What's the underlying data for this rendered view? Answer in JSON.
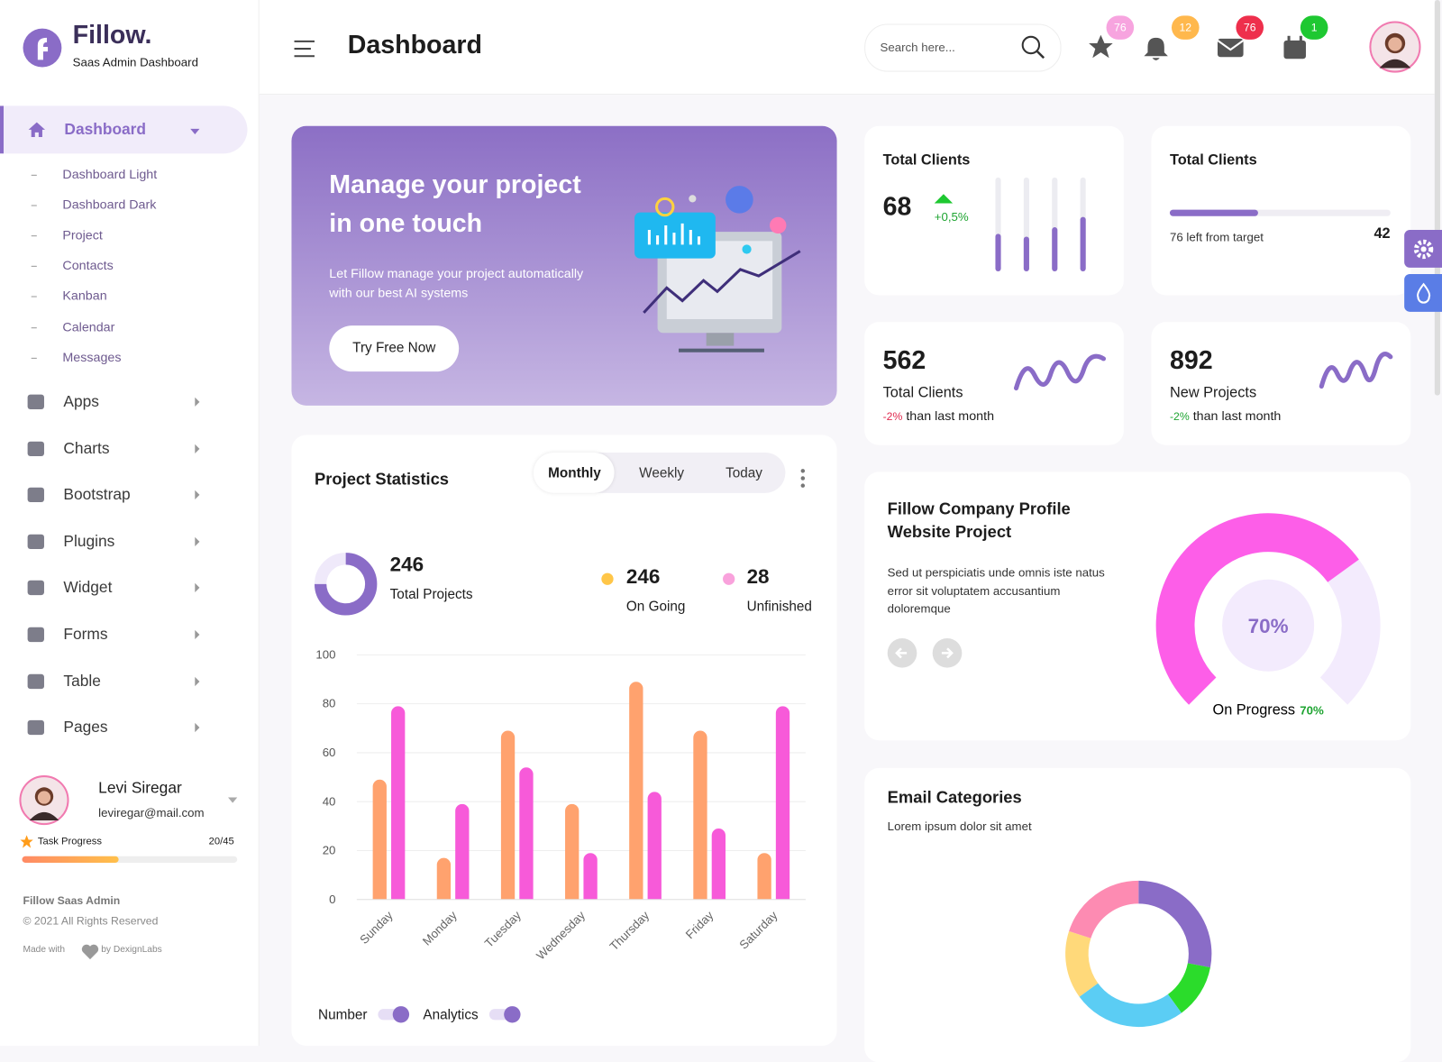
{
  "sidebar": {
    "brand": "Fillow.",
    "tagline": "Saas Admin Dashboard",
    "active": "Dashboard",
    "submenu": [
      "Dashboard Light",
      "Dashboard Dark",
      "Project",
      "Contacts",
      "Kanban",
      "Calendar",
      "Messages"
    ],
    "menu": [
      "Apps",
      "Charts",
      "Bootstrap",
      "Plugins",
      "Widget",
      "Forms",
      "Table",
      "Pages"
    ],
    "user": {
      "name": "Levi Siregar",
      "email": "leviregar@mail.com",
      "task_label": "Task Progress",
      "task_value": "20/45"
    },
    "footer": {
      "title": "Fillow Saas Admin",
      "rights": "© 2021 All Rights Reserved",
      "made_with": "Made with",
      "by": "by DexignLabs"
    }
  },
  "header": {
    "title": "Dashboard",
    "search_placeholder": "Search here...",
    "badges": [
      76,
      12,
      76,
      1
    ]
  },
  "banner": {
    "title": "Manage your project in one touch",
    "text": "Let Fillow manage your project automatically with our best AI systems",
    "button": "Try Free Now"
  },
  "project_statistics": {
    "title": "Project Statistics",
    "tabs": [
      "Monthly",
      "Weekly",
      "Today"
    ],
    "total": 246,
    "total_label": "Total Projects",
    "ongoing": 246,
    "ongoing_label": "On Going",
    "unfinished": 28,
    "unfinished_label": "Unfinished",
    "toggles": [
      "Number",
      "Analytics"
    ]
  },
  "cards": {
    "clients": {
      "title": "Total Clients",
      "value": 68,
      "change": "+0,5%"
    },
    "target": {
      "title": "Total Clients",
      "note": "76 left from target",
      "value": 42
    },
    "stats": [
      {
        "value": 562,
        "label": "Total Clients",
        "change": "-2%",
        "suffix": "than last month"
      },
      {
        "value": 892,
        "label": "New Projects",
        "change": "-2%",
        "suffix": "than last month"
      }
    ]
  },
  "company_profile": {
    "title": "Fillow Company Profile Website Project",
    "text": "Sed ut perspiciatis unde omnis iste natus error sit voluptatem accusantium doloremque"
  },
  "email_categories": {
    "title": "Email Categories",
    "subtitle": "Lorem ipsum dolor sit amet"
  },
  "chart_data": [
    {
      "type": "bar",
      "categories": [
        "Sunday",
        "Monday",
        "Tuesday",
        "Wednesday",
        "Thursday",
        "Friday",
        "Saturday"
      ],
      "series": [
        {
          "color": "#ffa26e",
          "values": [
            49,
            17,
            69,
            39,
            89,
            69,
            19
          ]
        },
        {
          "color": "#f75ad9",
          "values": [
            79,
            39,
            54,
            19,
            44,
            29,
            79
          ]
        }
      ],
      "ylim": [
        0,
        100
      ],
      "yticks": [
        0,
        20,
        40,
        60,
        80,
        100
      ],
      "grid": true
    },
    {
      "type": "gauge",
      "value": 70,
      "label": "70%",
      "caption": "On Progress",
      "ylim": [
        0,
        100
      ],
      "color": "#fd5ee8",
      "track_color": "#f3ebfd"
    },
    {
      "type": "pie",
      "values": [
        28,
        12,
        25,
        15,
        20
      ],
      "colors": [
        "#8a6cc7",
        "#2bdc2b",
        "#5bcdf4",
        "#ffd97a",
        "#fd8bb2"
      ]
    },
    {
      "type": "bar",
      "values": [
        40,
        37,
        47,
        58
      ],
      "ylim": [
        0,
        100
      ],
      "color": "#8a6cc7"
    }
  ]
}
